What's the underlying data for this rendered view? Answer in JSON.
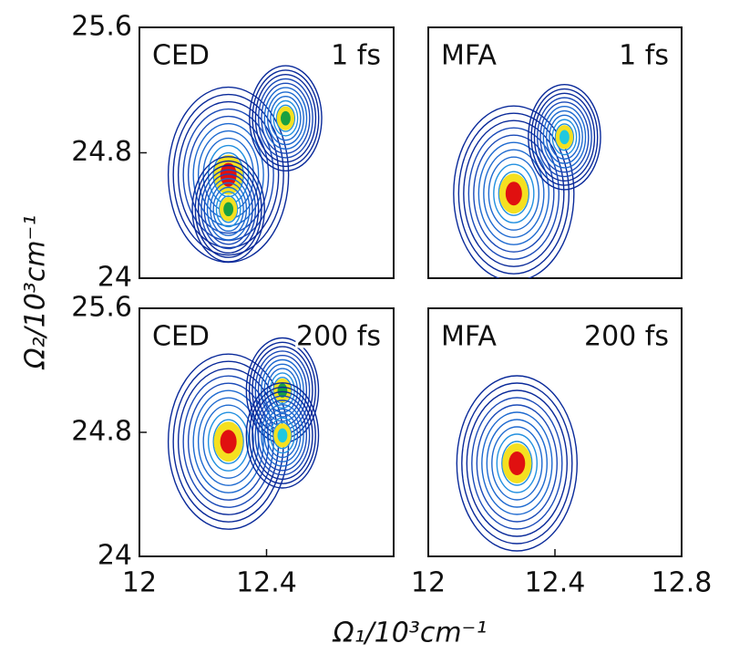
{
  "figure": {
    "xlabel": "Ω₁/10³cm⁻¹",
    "ylabel": "Ω₂/10³cm⁻¹"
  },
  "chart_data": [
    {
      "type": "contour",
      "method": "CED",
      "delay": "1 fs",
      "xlim": [
        12,
        12.8
      ],
      "ylim": [
        24,
        25.6
      ],
      "yticks": [
        {
          "value": 24,
          "label": "24"
        },
        {
          "value": 24.8,
          "label": "24.8"
        },
        {
          "value": 25.6,
          "label": "25.6"
        }
      ],
      "peaks": {
        "x": [
          12.28,
          12.46,
          12.28
        ],
        "y": [
          24.66,
          25.02,
          24.44
        ],
        "color": [
          "#e01010",
          "#1aa040",
          "#1aa040"
        ]
      }
    },
    {
      "type": "contour",
      "method": "MFA",
      "delay": "1 fs",
      "xlim": [
        12,
        12.8
      ],
      "ylim": [
        24,
        25.6
      ],
      "peaks": {
        "x": [
          12.27,
          12.43
        ],
        "y": [
          24.54,
          24.9
        ],
        "color": [
          "#e01010",
          "#20c8e0"
        ]
      }
    },
    {
      "type": "contour",
      "method": "CED",
      "delay": "200 fs",
      "xlim": [
        12,
        12.8
      ],
      "ylim": [
        24,
        25.6
      ],
      "yticks": [
        {
          "value": 24,
          "label": "24"
        },
        {
          "value": 24.8,
          "label": "24.8"
        },
        {
          "value": 25.6,
          "label": "25.6"
        }
      ],
      "xticks": [
        {
          "value": 12,
          "label": "12"
        },
        {
          "value": 12.4,
          "label": "12.4"
        }
      ],
      "peaks": {
        "x": [
          12.28,
          12.45,
          12.45
        ],
        "y": [
          24.74,
          25.07,
          24.78
        ],
        "color": [
          "#e01010",
          "#1aa040",
          "#20c8e0"
        ]
      }
    },
    {
      "type": "contour",
      "method": "MFA",
      "delay": "200 fs",
      "xlim": [
        12,
        12.8
      ],
      "ylim": [
        24,
        25.6
      ],
      "xticks": [
        {
          "value": 12,
          "label": "12"
        },
        {
          "value": 12.4,
          "label": "12.4"
        },
        {
          "value": 12.8,
          "label": "12.8"
        }
      ],
      "peaks": {
        "x": [
          12.28
        ],
        "y": [
          24.6
        ],
        "color": [
          "#e01010"
        ]
      }
    }
  ]
}
